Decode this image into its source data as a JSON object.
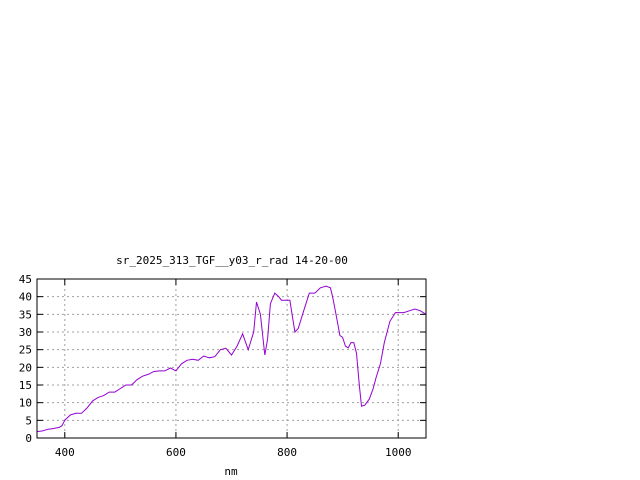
{
  "chart_data": {
    "type": "line",
    "title": "sr_2025_313_TGF__y03_r_rad 14-20-00",
    "xlabel": "nm",
    "ylabel": "",
    "xlim": [
      350,
      1050
    ],
    "ylim": [
      0,
      45
    ],
    "xticks": [
      400,
      600,
      800,
      1000
    ],
    "yticks": [
      0,
      5,
      10,
      15,
      20,
      25,
      30,
      35,
      40,
      45
    ],
    "grid": {
      "x": true,
      "y": true,
      "style": "dotted"
    },
    "line_color": "#9400d3",
    "series": [
      {
        "x": [
          350,
          360,
          370,
          380,
          390,
          395,
          400,
          410,
          420,
          430,
          440,
          450,
          460,
          470,
          480,
          490,
          500,
          510,
          520,
          530,
          540,
          550,
          560,
          570,
          580,
          590,
          600,
          610,
          620,
          630,
          640,
          650,
          660,
          670,
          680,
          690,
          700,
          710,
          720,
          730,
          740,
          745,
          752,
          760,
          765,
          770,
          778,
          785,
          790,
          805,
          808,
          814,
          820,
          830,
          840,
          850,
          860,
          870,
          878,
          882,
          888,
          895,
          900,
          905,
          910,
          915,
          920,
          925,
          930,
          934,
          940,
          948,
          955,
          960,
          968,
          975,
          985,
          995,
          1000,
          1010,
          1020,
          1030,
          1040,
          1050
        ],
        "y": [
          1.8,
          2.0,
          2.5,
          2.7,
          3.0,
          3.5,
          5,
          6.5,
          7,
          7,
          8.5,
          10.5,
          11.5,
          12,
          13,
          13,
          14,
          15,
          15,
          16.5,
          17.5,
          18,
          18.8,
          19,
          19,
          19.8,
          19,
          21,
          22,
          22.3,
          22,
          23.2,
          22.7,
          23,
          25,
          25.4,
          23.5,
          26,
          29.5,
          25,
          30,
          38.5,
          35,
          23.5,
          28,
          38,
          41,
          40,
          39,
          39,
          36,
          30,
          31,
          36,
          41,
          41,
          42.5,
          43,
          42.5,
          40,
          35,
          29,
          28.5,
          26,
          25.5,
          27,
          27,
          24,
          15,
          9,
          9.3,
          11,
          14,
          17,
          21,
          27,
          33,
          35.5,
          35.5,
          35.5,
          36,
          36.5,
          36,
          35
        ]
      }
    ]
  }
}
